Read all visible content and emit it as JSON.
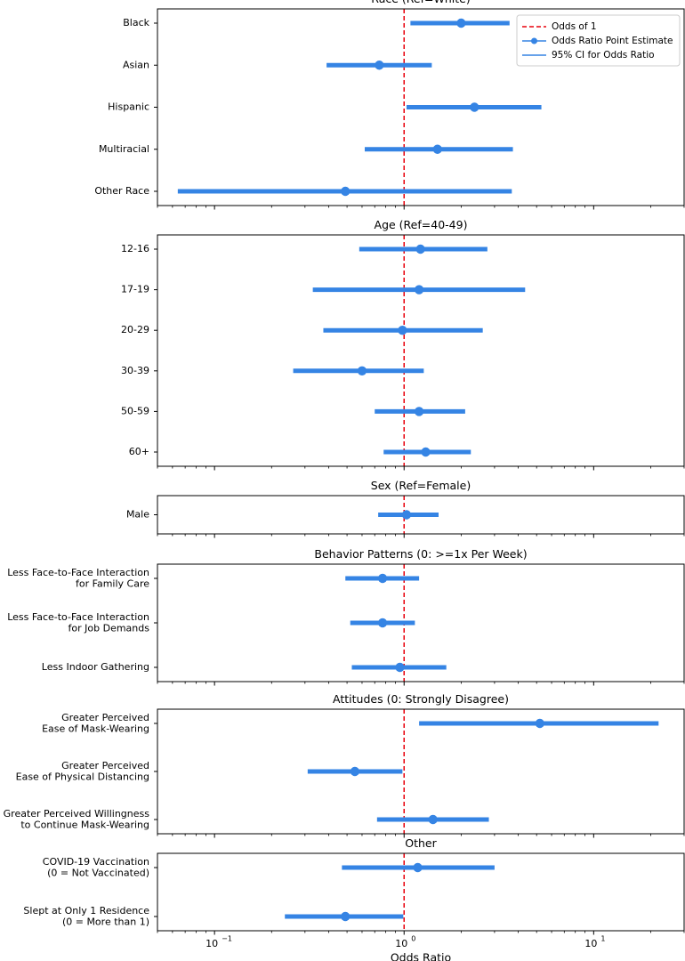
{
  "chart_data": {
    "type": "forest",
    "x_scale": "log",
    "xlim": [
      0.05,
      30
    ],
    "xlabel": "Odds Ratio",
    "x_ticks": [
      {
        "value": 0.1,
        "base": "10",
        "exp": "−1"
      },
      {
        "value": 1,
        "base": "10",
        "exp": "0"
      },
      {
        "value": 10,
        "base": "10",
        "exp": "1"
      }
    ],
    "reference_line": 1,
    "colors": {
      "point": "#3584e4",
      "reference": "#e8000b",
      "axis": "#000000"
    },
    "legend": {
      "position": "top-right",
      "entries": [
        "Odds of 1",
        "Odds Ratio Point Estimate",
        "95% CI for Odds Ratio"
      ]
    },
    "panels": [
      {
        "title": "Race (Ref=White)",
        "rows": [
          {
            "label": [
              "Black"
            ],
            "or": 2.0,
            "lo": 1.08,
            "hi": 3.6
          },
          {
            "label": [
              "Asian"
            ],
            "or": 0.74,
            "lo": 0.39,
            "hi": 1.4
          },
          {
            "label": [
              "Hispanic"
            ],
            "or": 2.35,
            "lo": 1.03,
            "hi": 5.3
          },
          {
            "label": [
              "Multiracial"
            ],
            "or": 1.5,
            "lo": 0.62,
            "hi": 3.75
          },
          {
            "label": [
              "Other Race"
            ],
            "or": 0.49,
            "lo": 0.064,
            "hi": 3.7
          }
        ]
      },
      {
        "title": "Age (Ref=40-49)",
        "rows": [
          {
            "label": [
              "12-16"
            ],
            "or": 1.22,
            "lo": 0.58,
            "hi": 2.75
          },
          {
            "label": [
              "17-19"
            ],
            "or": 1.2,
            "lo": 0.33,
            "hi": 4.35
          },
          {
            "label": [
              "20-29"
            ],
            "or": 0.98,
            "lo": 0.375,
            "hi": 2.6
          },
          {
            "label": [
              "30-39"
            ],
            "or": 0.6,
            "lo": 0.26,
            "hi": 1.27
          },
          {
            "label": [
              "50-59"
            ],
            "or": 1.2,
            "lo": 0.7,
            "hi": 2.1
          },
          {
            "label": [
              "60+"
            ],
            "or": 1.3,
            "lo": 0.78,
            "hi": 2.25
          }
        ]
      },
      {
        "title": "Sex (Ref=Female)",
        "rows": [
          {
            "label": [
              "Male"
            ],
            "or": 1.03,
            "lo": 0.73,
            "hi": 1.52
          }
        ]
      },
      {
        "title": "Behavior Patterns (0: >=1x Per Week)",
        "rows": [
          {
            "label": [
              "Less Face-to-Face Interaction",
              "for Family Care"
            ],
            "or": 0.77,
            "lo": 0.49,
            "hi": 1.2
          },
          {
            "label": [
              "Less Face-to-Face Interaction",
              "for Job Demands"
            ],
            "or": 0.77,
            "lo": 0.52,
            "hi": 1.14
          },
          {
            "label": [
              "Less Indoor Gathering"
            ],
            "or": 0.95,
            "lo": 0.53,
            "hi": 1.67
          }
        ]
      },
      {
        "title": "Attitudes (0: Strongly Disagree)",
        "rows": [
          {
            "label": [
              "Greater Perceived",
              "Ease of Mask-Wearing"
            ],
            "or": 5.2,
            "lo": 1.2,
            "hi": 22.0
          },
          {
            "label": [
              "Greater Perceived",
              "Ease of Physical Distancing"
            ],
            "or": 0.55,
            "lo": 0.31,
            "hi": 0.98
          },
          {
            "label": [
              "Greater Perceived Willingness",
              "to Continue Mask-Wearing"
            ],
            "or": 1.42,
            "lo": 0.72,
            "hi": 2.8
          }
        ]
      },
      {
        "title": "Other",
        "rows": [
          {
            "label": [
              "COVID-19 Vaccination",
              "(0 = Not Vaccinated)"
            ],
            "or": 1.18,
            "lo": 0.47,
            "hi": 3.0
          },
          {
            "label": [
              "Slept at Only 1 Residence",
              "(0 = More than 1)"
            ],
            "or": 0.49,
            "lo": 0.235,
            "hi": 0.99
          }
        ]
      }
    ]
  }
}
